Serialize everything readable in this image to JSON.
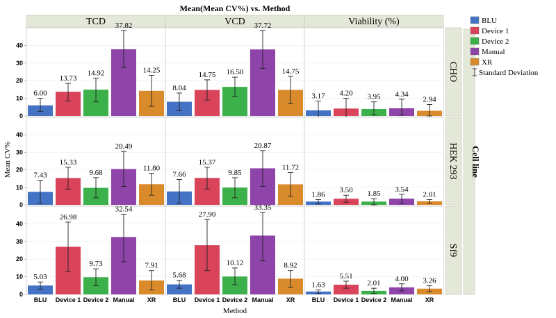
{
  "chart_data": {
    "type": "bar",
    "title": "Mean(Mean CV%) vs. Method",
    "xlabel": "Method",
    "ylabel": "Mean CV%",
    "row_group_title": "Cell line",
    "columns": [
      "TCD",
      "VCD",
      "Viability (%)"
    ],
    "rows": [
      "CHO",
      "HEK 293",
      "Sf9"
    ],
    "categories": [
      "BLU",
      "Device 1",
      "Device 2",
      "Manual",
      "XR"
    ],
    "y_ticks": [
      "0",
      "10",
      "20",
      "30",
      "40"
    ],
    "ylim": [
      0,
      50
    ],
    "colors": [
      "#4472c4",
      "#d9445a",
      "#3cb04a",
      "#8e44a8",
      "#d98a2b"
    ],
    "legend": {
      "placement": "right",
      "items": [
        "BLU",
        "Device 1",
        "Device 2",
        "Manual",
        "XR"
      ],
      "error_label": "Standard Deviation"
    },
    "panels": [
      [
        {
          "values": [
            6.0,
            13.73,
            14.92,
            37.82,
            14.25
          ],
          "labels": [
            "6.00",
            "13.73",
            "14.92",
            "37.82",
            "14.25"
          ],
          "err_low": [
            2.5,
            8.5,
            8.0,
            27.5,
            5.5
          ],
          "err_high": [
            10.0,
            18.5,
            21.5,
            48.5,
            23.0
          ]
        },
        {
          "values": [
            8.04,
            14.75,
            16.5,
            37.72,
            14.75
          ],
          "labels": [
            "8.04",
            "14.75",
            "16.50",
            "37.72",
            "14.75"
          ],
          "err_low": [
            3.0,
            9.0,
            11.0,
            27.0,
            7.0
          ],
          "err_high": [
            13.0,
            20.5,
            22.0,
            48.5,
            22.5
          ]
        },
        {
          "values": [
            3.17,
            4.2,
            3.95,
            4.34,
            2.94
          ],
          "labels": [
            "3.17",
            "4.20",
            "3.95",
            "4.34",
            "2.94"
          ],
          "err_low": [
            -2.5,
            -2.0,
            0.5,
            0.5,
            0.0
          ],
          "err_high": [
            8.5,
            10.0,
            8.0,
            9.5,
            6.5
          ]
        }
      ],
      [
        {
          "values": [
            7.43,
            15.33,
            9.68,
            20.49,
            11.8
          ],
          "labels": [
            "7.43",
            "15.33",
            "9.68",
            "20.49",
            "11.80"
          ],
          "err_low": [
            1.0,
            9.0,
            4.0,
            10.5,
            5.5
          ],
          "err_high": [
            14.0,
            21.5,
            15.5,
            30.5,
            18.0
          ]
        },
        {
          "values": [
            7.66,
            15.37,
            9.85,
            20.87,
            11.72
          ],
          "labels": [
            "7.66",
            "15.37",
            "9.85",
            "20.87",
            "11.72"
          ],
          "err_low": [
            1.0,
            9.0,
            4.0,
            10.5,
            5.0
          ],
          "err_high": [
            14.5,
            21.5,
            15.5,
            31.0,
            18.5
          ]
        },
        {
          "values": [
            1.86,
            3.5,
            1.85,
            3.54,
            2.01
          ],
          "labels": [
            "1.86",
            "3.50",
            "1.85",
            "3.54",
            "2.01"
          ],
          "err_low": [
            0.5,
            1.5,
            0.0,
            1.0,
            1.0
          ],
          "err_high": [
            3.0,
            5.5,
            3.5,
            6.0,
            3.0
          ]
        }
      ],
      [
        {
          "values": [
            5.03,
            26.98,
            9.73,
            32.54,
            7.91
          ],
          "labels": [
            "5.03",
            "26.98",
            "9.73",
            "32.54",
            "7.91"
          ],
          "err_low": [
            3.0,
            13.0,
            5.0,
            18.5,
            2.5
          ],
          "err_high": [
            7.0,
            41.0,
            14.5,
            45.5,
            13.5
          ]
        },
        {
          "values": [
            5.68,
            27.9,
            10.12,
            33.35,
            8.92
          ],
          "labels": [
            "5.68",
            "27.90",
            "10.12",
            "33.35",
            "8.92"
          ],
          "err_low": [
            3.5,
            13.5,
            5.5,
            19.0,
            4.0
          ],
          "err_high": [
            8.0,
            42.5,
            15.0,
            46.5,
            13.5
          ]
        },
        {
          "values": [
            1.63,
            5.51,
            2.01,
            4.0,
            3.26
          ],
          "labels": [
            "1.63",
            "5.51",
            "2.01",
            "4.00",
            "3.26"
          ],
          "err_low": [
            0.5,
            3.5,
            0.5,
            2.0,
            1.5
          ],
          "err_high": [
            2.5,
            7.5,
            3.5,
            6.0,
            5.0
          ]
        }
      ]
    ]
  }
}
